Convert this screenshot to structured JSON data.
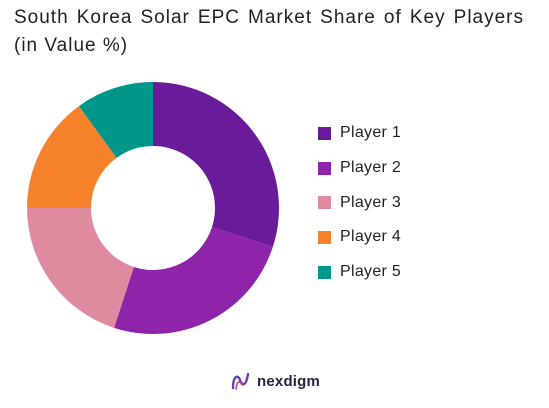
{
  "chart_data": {
    "type": "pie",
    "donut": true,
    "title": "South Korea Solar EPC  Market Share of Key Players (in Value %)",
    "series": [
      {
        "name": "Player 1",
        "value": 30,
        "color": "#6a1b9a"
      },
      {
        "name": "Player 2",
        "value": 25,
        "color": "#8e24aa"
      },
      {
        "name": "Player 3",
        "value": 20,
        "color": "#e08aa0"
      },
      {
        "name": "Player 4",
        "value": 15,
        "color": "#f5822a"
      },
      {
        "name": "Player 5",
        "value": 10,
        "color": "#00968a"
      }
    ],
    "legend_position": "right"
  },
  "brand": {
    "name": "nexdigm",
    "logo_icon": "nexdigm-logo-icon"
  }
}
